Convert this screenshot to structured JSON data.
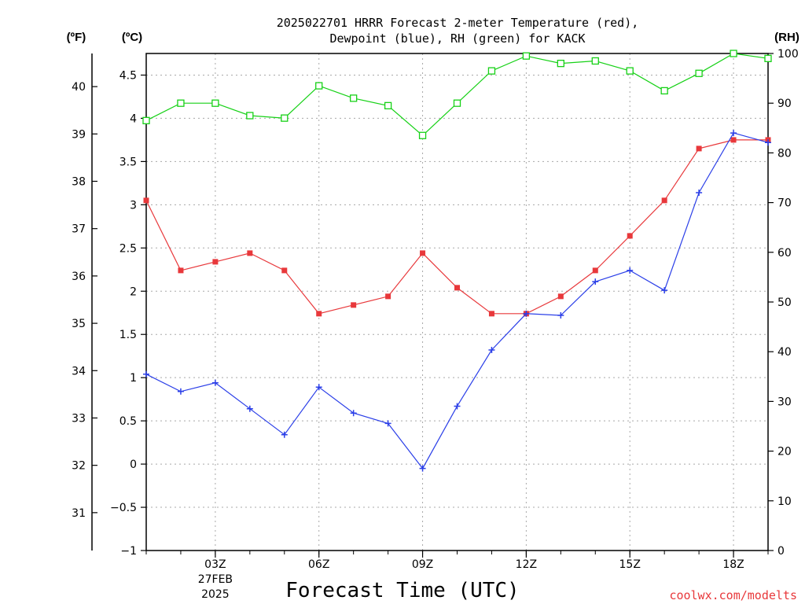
{
  "chart_data": {
    "type": "line",
    "title_line1": "2025022701 HRRR Forecast 2-meter Temperature (red),",
    "title_line2": "Dewpoint (blue), RH (green) for KACK",
    "xlabel": "Forecast Time (UTC)",
    "left_outer_axis": {
      "label": "(ºF)",
      "ticks": [
        "31",
        "32",
        "33",
        "34",
        "35",
        "36",
        "37",
        "38",
        "39",
        "40"
      ],
      "range": [
        30.2,
        40.7
      ]
    },
    "left_inner_axis": {
      "label": "(ºC)",
      "ticks": [
        "−1",
        "−0.5",
        "0",
        "0.5",
        "1",
        "1.5",
        "2",
        "2.5",
        "3",
        "3.5",
        "4",
        "4.5"
      ],
      "range": [
        -1,
        4.75
      ]
    },
    "right_axis": {
      "label": "(RH)",
      "ticks": [
        "0",
        "10",
        "20",
        "30",
        "40",
        "50",
        "60",
        "70",
        "80",
        "90",
        "100"
      ],
      "range": [
        0,
        100
      ]
    },
    "x_hours": [
      1,
      2,
      3,
      4,
      5,
      6,
      7,
      8,
      9,
      10,
      11,
      12,
      13,
      14,
      15,
      16,
      17,
      18,
      19
    ],
    "x_range": [
      1,
      19
    ],
    "x_ticks": [
      {
        "hour": 3,
        "label": "03Z",
        "sub1": "27FEB",
        "sub2": "2025"
      },
      {
        "hour": 6,
        "label": "06Z"
      },
      {
        "hour": 9,
        "label": "09Z"
      },
      {
        "hour": 12,
        "label": "12Z"
      },
      {
        "hour": 15,
        "label": "15Z"
      },
      {
        "hour": 18,
        "label": "18Z"
      }
    ],
    "grid": true,
    "series": [
      {
        "name": "Temperature",
        "unit": "C",
        "color": "#e8383b",
        "marker": "filled-square",
        "values": [
          3.05,
          2.24,
          2.34,
          2.44,
          2.24,
          1.74,
          1.84,
          1.94,
          2.44,
          2.04,
          1.74,
          1.74,
          1.94,
          2.24,
          2.64,
          3.05,
          3.65,
          3.75,
          3.75
        ]
      },
      {
        "name": "Dewpoint",
        "unit": "C",
        "color": "#2b3fe8",
        "marker": "plus",
        "values": [
          1.04,
          0.84,
          0.94,
          0.64,
          0.34,
          0.89,
          0.59,
          0.47,
          -0.05,
          0.67,
          1.32,
          1.74,
          1.72,
          2.11,
          2.24,
          2.01,
          3.14,
          3.83,
          3.72
        ]
      },
      {
        "name": "RH",
        "unit": "%",
        "color": "#16d116",
        "marker": "open-square",
        "values": [
          86.5,
          90,
          90,
          87.5,
          87,
          93.5,
          91,
          89.5,
          83.5,
          90,
          96.5,
          99.5,
          98,
          98.5,
          96.5,
          92.5,
          96,
          100,
          99
        ]
      }
    ]
  },
  "credit": "coolwx.com/modelts"
}
